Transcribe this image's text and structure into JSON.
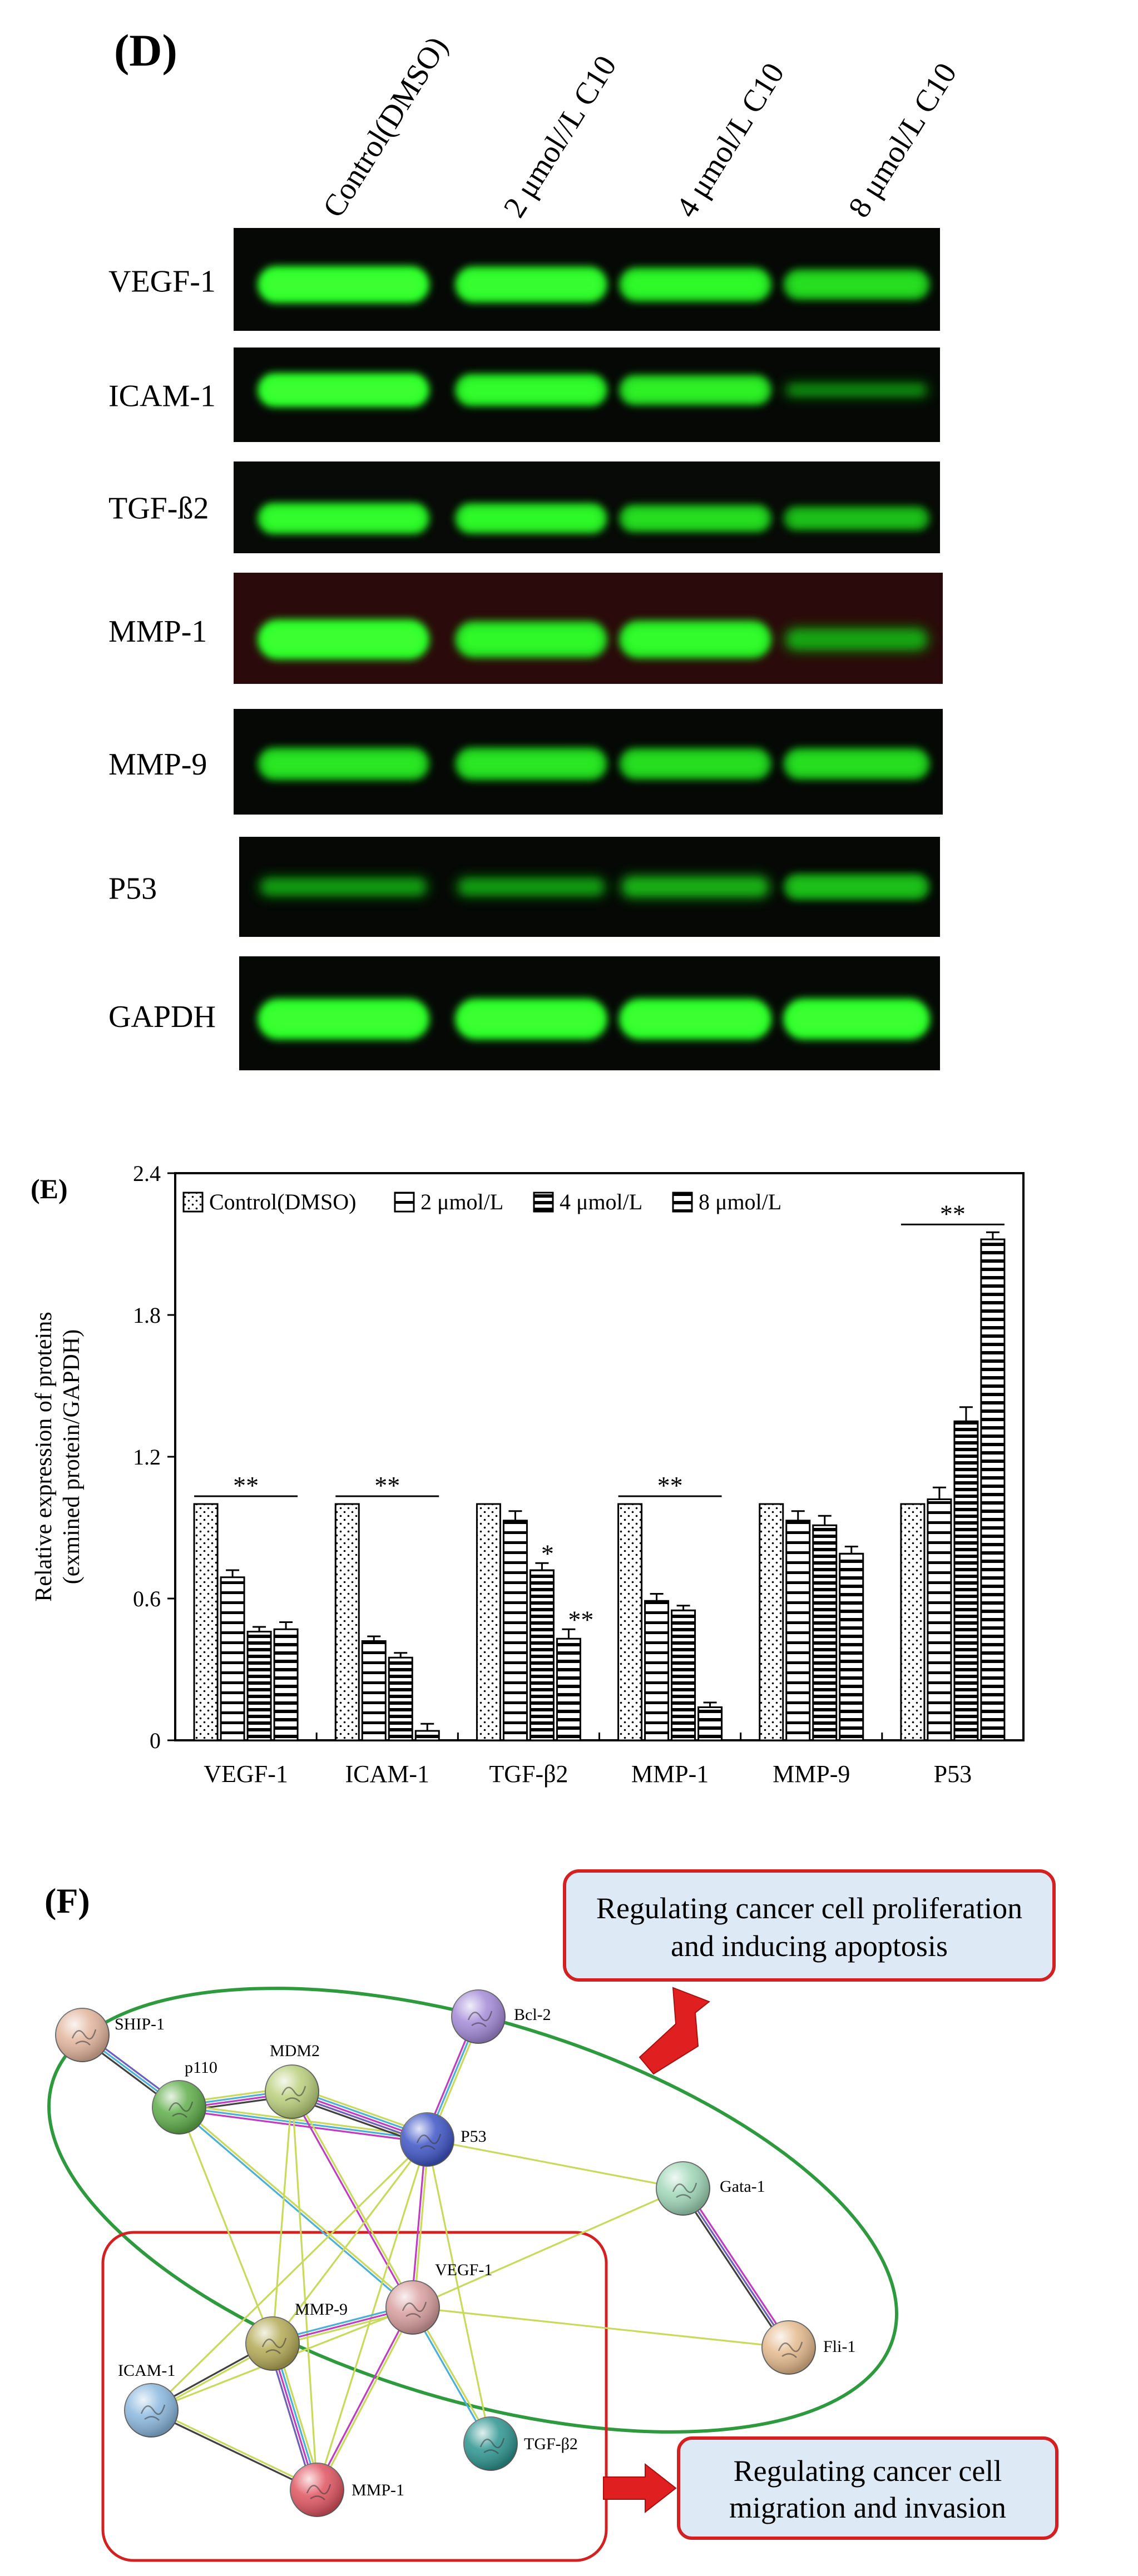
{
  "panel_d": {
    "label": "(D)",
    "lanes": [
      "Control(DMSO)",
      "2 μmol//L C10",
      "4 μmol/L C10",
      "8 μmol/L  C10"
    ],
    "blots": [
      {
        "name": "VEGF-1",
        "intensity": [
          1.0,
          0.95,
          0.85,
          0.7
        ],
        "bg": "#050805"
      },
      {
        "name": "ICAM-1",
        "intensity": [
          1.0,
          0.9,
          0.8,
          0.25
        ],
        "bg": "#050805"
      },
      {
        "name": "TGF-ß2",
        "intensity": [
          0.9,
          0.85,
          0.7,
          0.55
        ],
        "bg": "#070a06"
      },
      {
        "name": "MMP-1",
        "intensity": [
          1.0,
          0.85,
          0.9,
          0.4
        ],
        "bg": "#2a0a0a"
      },
      {
        "name": "MMP-9",
        "intensity": [
          0.75,
          0.75,
          0.7,
          0.7
        ],
        "bg": "#050805"
      },
      {
        "name": "P53",
        "intensity": [
          0.35,
          0.35,
          0.45,
          0.55
        ],
        "bg": "#050805"
      },
      {
        "name": "GAPDH",
        "intensity": [
          1.0,
          1.0,
          1.0,
          1.0
        ],
        "bg": "#050805"
      }
    ]
  },
  "chart_data": {
    "type": "bar",
    "panel_label": "(E)",
    "categories": [
      "VEGF-1",
      "ICAM-1",
      "TGF-β2",
      "MMP-1",
      "MMP-9",
      "P53"
    ],
    "series": [
      {
        "name": "Control(DMSO)",
        "values": [
          1.0,
          1.0,
          1.0,
          1.0,
          1.0,
          1.0
        ],
        "errors": [
          0,
          0,
          0,
          0,
          0,
          0
        ],
        "pattern": "dots"
      },
      {
        "name": "2 μmol/L",
        "values": [
          0.69,
          0.42,
          0.93,
          0.59,
          0.93,
          1.02
        ],
        "errors": [
          0.03,
          0.02,
          0.04,
          0.03,
          0.04,
          0.05
        ],
        "pattern": "hlines-wide"
      },
      {
        "name": "4 μmol/L",
        "values": [
          0.46,
          0.35,
          0.72,
          0.55,
          0.91,
          1.35
        ],
        "errors": [
          0.02,
          0.02,
          0.03,
          0.02,
          0.04,
          0.06
        ],
        "pattern": "hlines-dense"
      },
      {
        "name": "8 μmol/L",
        "values": [
          0.47,
          0.04,
          0.43,
          0.14,
          0.79,
          2.12
        ],
        "errors": [
          0.03,
          0.03,
          0.04,
          0.02,
          0.03,
          0.03
        ],
        "pattern": "hlines-med"
      }
    ],
    "ylabel_line1": "Relative expression of proteins",
    "ylabel_line2": "(exmined protein/GAPDH)",
    "ylim": [
      0,
      2.4
    ],
    "yticks": [
      "0",
      "0.6",
      "1.2",
      "1.8",
      "2.4"
    ],
    "ytick_values": [
      0,
      0.6,
      1.2,
      1.8,
      2.4
    ],
    "legend_position": "top",
    "annotations": [
      {
        "text": "**",
        "type": "group",
        "category": 0
      },
      {
        "text": "**",
        "type": "group",
        "category": 1
      },
      {
        "text": "*",
        "type": "bar",
        "category": 2,
        "series": 2
      },
      {
        "text": "**",
        "type": "bar",
        "category": 2,
        "series": 3
      },
      {
        "text": "**",
        "type": "group",
        "category": 3
      },
      {
        "text": "**",
        "type": "group",
        "category": 5
      }
    ]
  },
  "panel_f": {
    "label": "(F)",
    "callout_top_line1": "Regulating cancer cell proliferation",
    "callout_top_line2": "and inducing apoptosis",
    "callout_bottom_line1": "Regulating cancer cell",
    "callout_bottom_line2": "migration and invasion",
    "nodes": [
      {
        "id": "SHIP-1",
        "label": "SHIP-1",
        "color": "#e2b49c"
      },
      {
        "id": "p110",
        "label": "p110",
        "color": "#5fae4a"
      },
      {
        "id": "MDM2",
        "label": "MDM2",
        "color": "#b9cf7a"
      },
      {
        "id": "Bcl-2",
        "label": "Bcl-2",
        "color": "#a48ad8"
      },
      {
        "id": "P53",
        "label": "P53",
        "color": "#3e55c6"
      },
      {
        "id": "Gata-1",
        "label": "Gata-1",
        "color": "#9ed6b6"
      },
      {
        "id": "VEGF-1",
        "label": "VEGF-1",
        "color": "#d89d9d"
      },
      {
        "id": "Fli-1",
        "label": "Fli-1",
        "color": "#e4b98c"
      },
      {
        "id": "MMP-9",
        "label": "MMP-9",
        "color": "#b4aa55"
      },
      {
        "id": "ICAM-1",
        "label": "ICAM-1",
        "color": "#8ab8de"
      },
      {
        "id": "TGF-β2",
        "label": "TGF-β2",
        "color": "#2d9590"
      },
      {
        "id": "MMP-1",
        "label": "MMP-1",
        "color": "#e05460"
      }
    ],
    "edge_colors": {
      "yellow": "#c9d95a",
      "blue": "#4ab0d8",
      "magenta": "#c03cc0",
      "purple": "#6e60b8",
      "dark": "#404040"
    }
  }
}
